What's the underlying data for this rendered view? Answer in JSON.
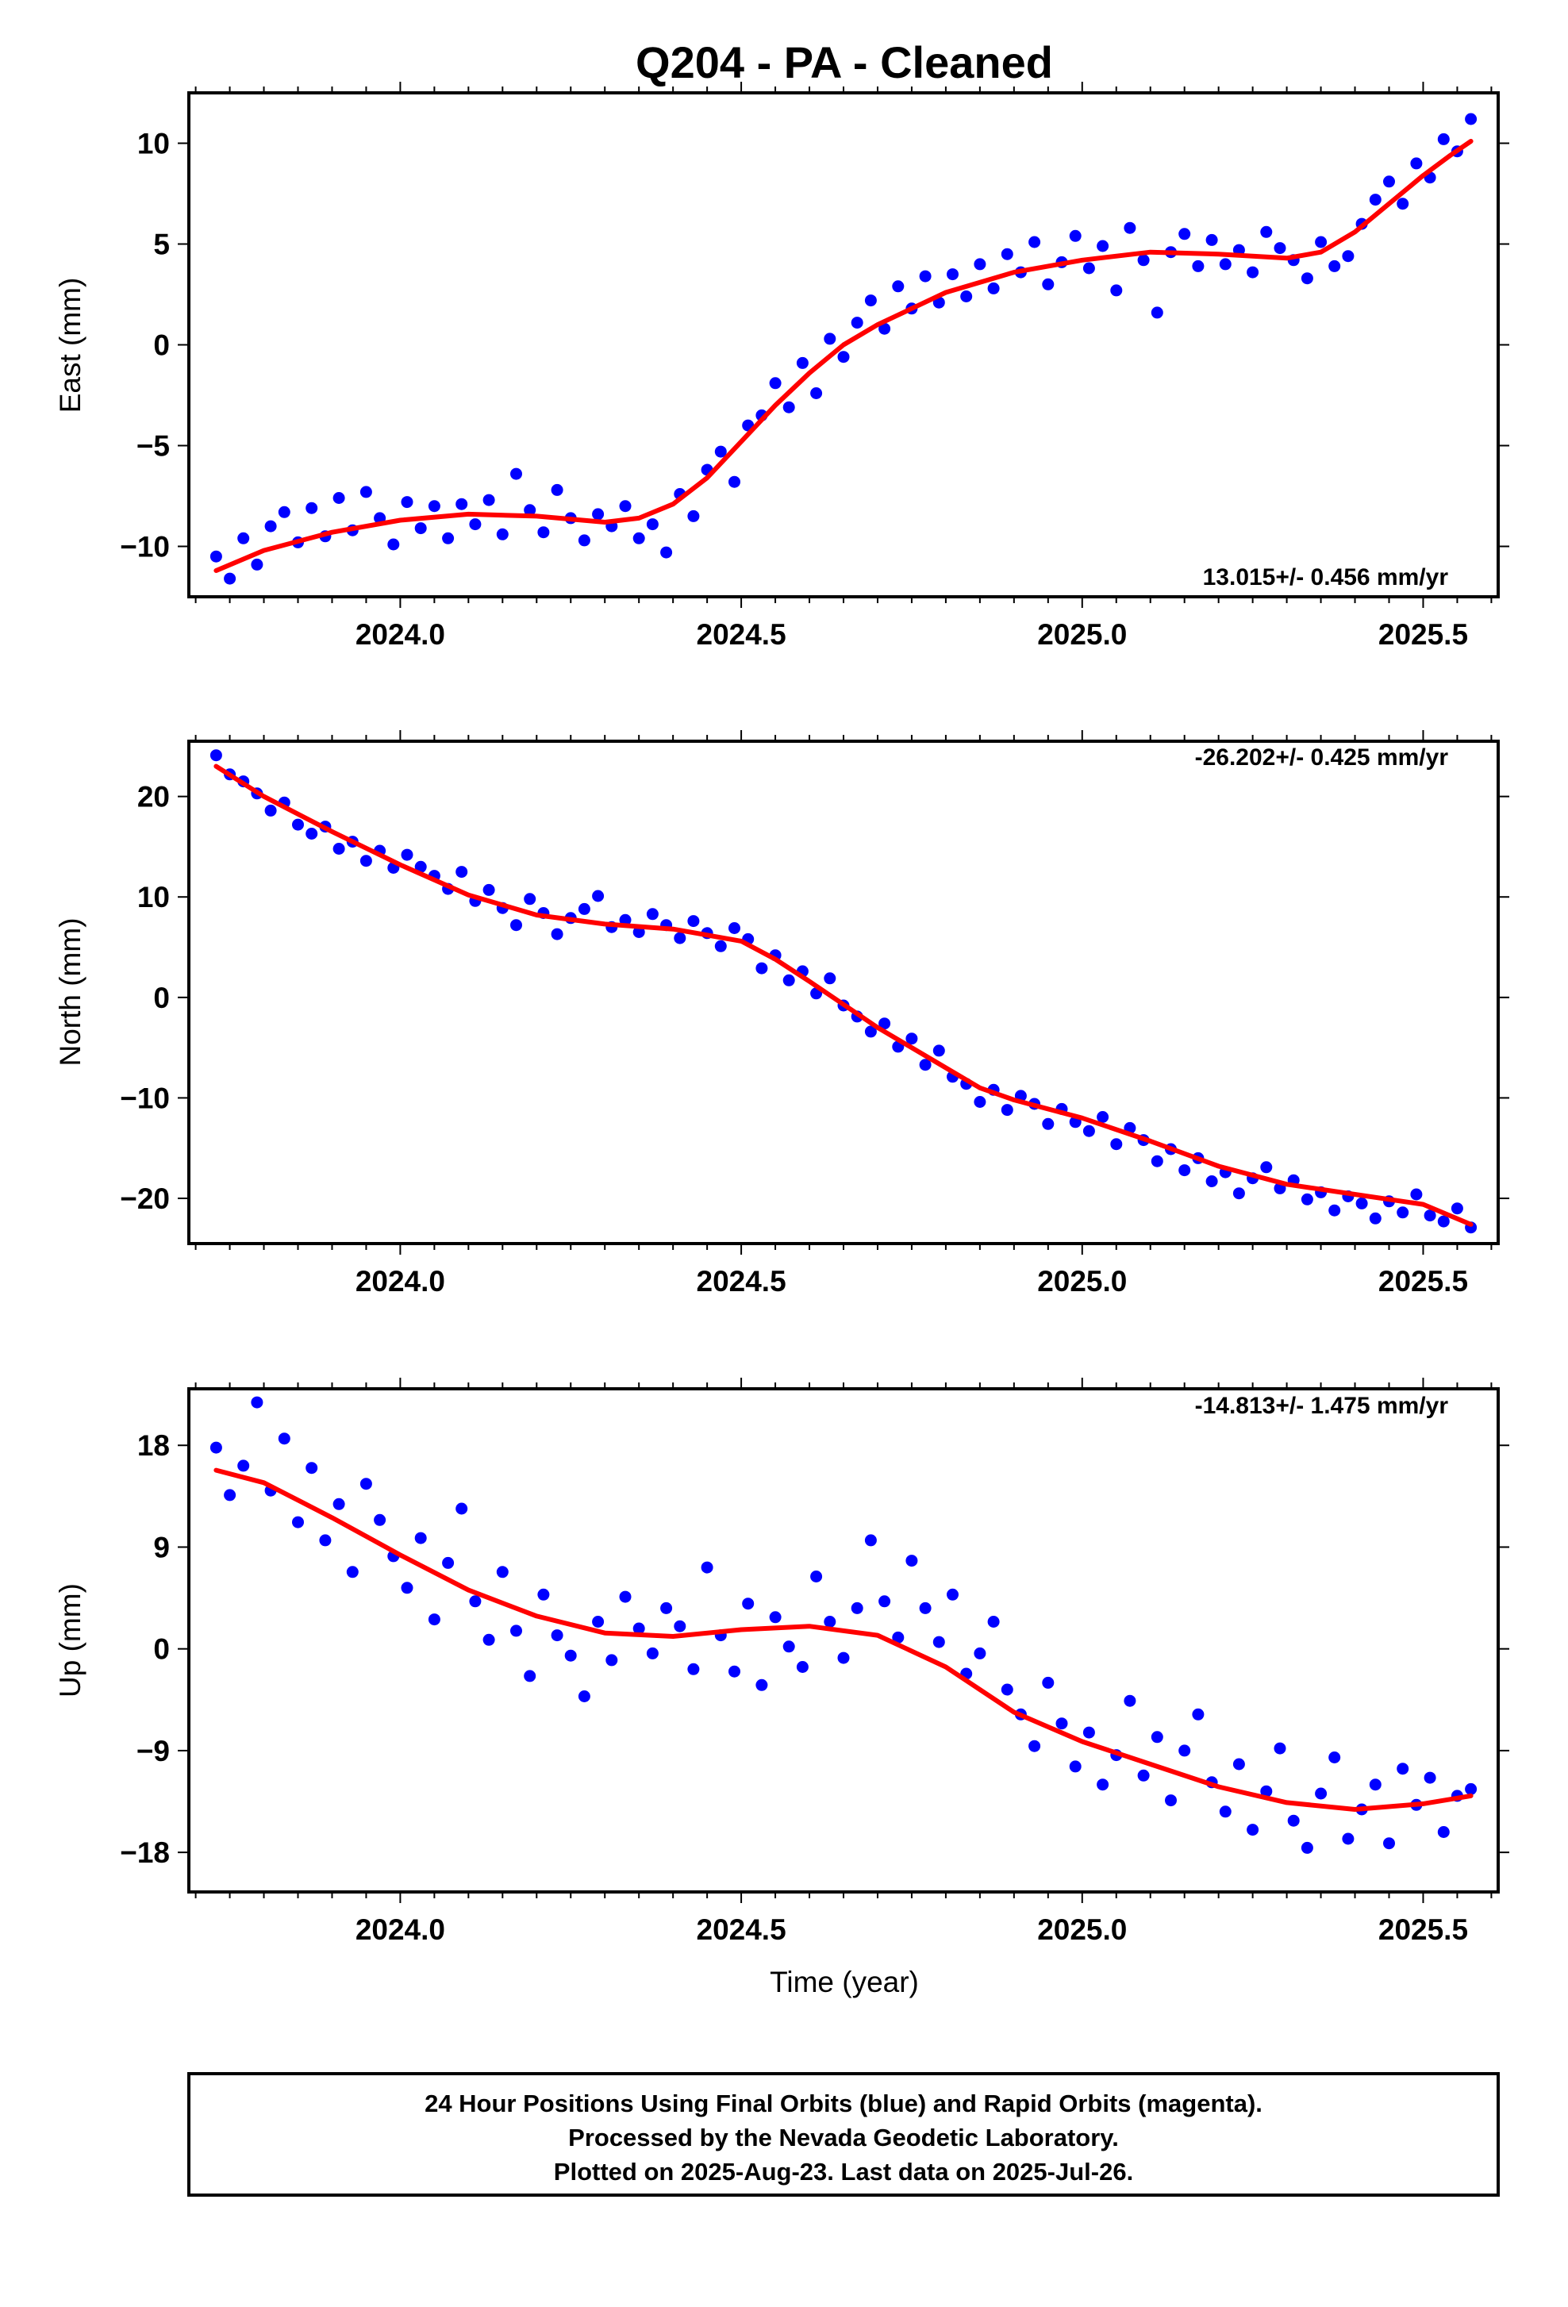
{
  "title": "Q204  - PA - Cleaned",
  "x_axis_label": "Time (year)",
  "footer": {
    "lines": [
      "24 Hour Positions Using Final Orbits (blue) and Rapid Orbits (magenta).",
      "Processed by the Nevada Geodetic Laboratory.",
      "Plotted on 2025-Aug-23. Last data on 2025-Jul-26."
    ]
  },
  "colors": {
    "points": "#0000ff",
    "fit": "#ff0000",
    "frame": "#000000"
  },
  "chart_data": [
    {
      "type": "scatter",
      "name": "east",
      "ylabel": "East (mm)",
      "rate": "13.015+/- 0.456 mm/yr",
      "rate_position": "bottom-right",
      "xlim": [
        2023.69,
        2025.61
      ],
      "ylim": [
        -12.5,
        12.5
      ],
      "xticks": [
        2024.0,
        2024.5,
        2025.0,
        2025.5
      ],
      "xtick_labels": [
        "2024.0",
        "2024.5",
        "2025.0",
        "2025.5"
      ],
      "yticks": [
        -10,
        -5,
        0,
        5,
        10
      ],
      "ytick_labels": [
        "−10",
        "−5",
        "0",
        "5",
        "10"
      ],
      "trend": {
        "x": [
          2023.73,
          2023.8,
          2023.9,
          2024.0,
          2024.1,
          2024.2,
          2024.3,
          2024.35,
          2024.4,
          2024.45,
          2024.5,
          2024.55,
          2024.6,
          2024.65,
          2024.7,
          2024.8,
          2024.9,
          2025.0,
          2025.1,
          2025.2,
          2025.3,
          2025.35,
          2025.4,
          2025.45,
          2025.5,
          2025.54,
          2025.57
        ],
        "y": [
          -11.2,
          -10.2,
          -9.3,
          -8.7,
          -8.4,
          -8.5,
          -8.8,
          -8.6,
          -7.9,
          -6.6,
          -4.8,
          -3.0,
          -1.4,
          0.0,
          1.0,
          2.6,
          3.6,
          4.2,
          4.6,
          4.5,
          4.3,
          4.6,
          5.6,
          7.0,
          8.4,
          9.4,
          10.1
        ]
      },
      "points": {
        "x": [
          2023.73,
          2023.75,
          2023.77,
          2023.79,
          2023.81,
          2023.83,
          2023.85,
          2023.87,
          2023.89,
          2023.91,
          2023.93,
          2023.95,
          2023.97,
          2023.99,
          2024.01,
          2024.03,
          2024.05,
          2024.07,
          2024.09,
          2024.11,
          2024.13,
          2024.15,
          2024.17,
          2024.19,
          2024.21,
          2024.23,
          2024.25,
          2024.27,
          2024.29,
          2024.31,
          2024.33,
          2024.35,
          2024.37,
          2024.39,
          2024.41,
          2024.43,
          2024.45,
          2024.47,
          2024.49,
          2024.51,
          2024.53,
          2024.55,
          2024.57,
          2024.59,
          2024.61,
          2024.63,
          2024.65,
          2024.67,
          2024.69,
          2024.71,
          2024.73,
          2024.75,
          2024.77,
          2024.79,
          2024.81,
          2024.83,
          2024.85,
          2024.87,
          2024.89,
          2024.91,
          2024.93,
          2024.95,
          2024.97,
          2024.99,
          2025.01,
          2025.03,
          2025.05,
          2025.07,
          2025.09,
          2025.11,
          2025.13,
          2025.15,
          2025.17,
          2025.19,
          2025.21,
          2025.23,
          2025.25,
          2025.27,
          2025.29,
          2025.31,
          2025.33,
          2025.35,
          2025.37,
          2025.39,
          2025.41,
          2025.43,
          2025.45,
          2025.47,
          2025.49,
          2025.51,
          2025.53,
          2025.55,
          2025.57
        ],
        "y": [
          -10.5,
          -11.6,
          -9.6,
          -10.9,
          -9.0,
          -8.3,
          -9.8,
          -8.1,
          -9.5,
          -7.6,
          -9.2,
          -7.3,
          -8.6,
          -9.9,
          -7.8,
          -9.1,
          -8.0,
          -9.6,
          -7.9,
          -8.9,
          -7.7,
          -9.4,
          -6.4,
          -8.2,
          -9.3,
          -7.2,
          -8.6,
          -9.7,
          -8.4,
          -9.0,
          -8.0,
          -9.6,
          -8.9,
          -10.3,
          -7.4,
          -8.5,
          -6.2,
          -5.3,
          -6.8,
          -4.0,
          -3.5,
          -1.9,
          -3.1,
          -0.9,
          -2.4,
          0.3,
          -0.6,
          1.1,
          2.2,
          0.8,
          2.9,
          1.8,
          3.4,
          2.1,
          3.5,
          2.4,
          4.0,
          2.8,
          4.5,
          3.6,
          5.1,
          3.0,
          4.1,
          5.4,
          3.8,
          4.9,
          2.7,
          5.8,
          4.2,
          1.6,
          4.6,
          5.5,
          3.9,
          5.2,
          4.0,
          4.7,
          3.6,
          5.6,
          4.8,
          4.2,
          3.3,
          5.1,
          3.9,
          4.4,
          6.0,
          7.2,
          8.1,
          7.0,
          9.0,
          8.3,
          10.2,
          9.6,
          11.2
        ]
      }
    },
    {
      "type": "scatter",
      "name": "north",
      "ylabel": "North (mm)",
      "rate": "-26.202+/- 0.425 mm/yr",
      "rate_position": "top-right",
      "xlim": [
        2023.69,
        2025.61
      ],
      "ylim": [
        -24.5,
        25.5
      ],
      "xticks": [
        2024.0,
        2024.5,
        2025.0,
        2025.5
      ],
      "xtick_labels": [
        "2024.0",
        "2024.5",
        "2025.0",
        "2025.5"
      ],
      "yticks": [
        -20,
        -10,
        0,
        10,
        20
      ],
      "ytick_labels": [
        "−20",
        "−10",
        "0",
        "10",
        "20"
      ],
      "trend": {
        "x": [
          2023.73,
          2023.8,
          2023.9,
          2024.0,
          2024.1,
          2024.2,
          2024.3,
          2024.4,
          2024.5,
          2024.55,
          2024.6,
          2024.7,
          2024.8,
          2024.85,
          2024.9,
          2025.0,
          2025.1,
          2025.2,
          2025.3,
          2025.4,
          2025.5,
          2025.57
        ],
        "y": [
          23.0,
          20.0,
          16.5,
          13.2,
          10.2,
          8.2,
          7.3,
          6.8,
          5.6,
          3.8,
          1.6,
          -3.0,
          -7.0,
          -9.0,
          -10.2,
          -12.0,
          -14.3,
          -16.8,
          -18.6,
          -19.6,
          -20.6,
          -22.6
        ]
      },
      "points": {
        "x": [
          2023.73,
          2023.75,
          2023.77,
          2023.79,
          2023.81,
          2023.83,
          2023.85,
          2023.87,
          2023.89,
          2023.91,
          2023.93,
          2023.95,
          2023.97,
          2023.99,
          2024.01,
          2024.03,
          2024.05,
          2024.07,
          2024.09,
          2024.11,
          2024.13,
          2024.15,
          2024.17,
          2024.19,
          2024.21,
          2024.23,
          2024.25,
          2024.27,
          2024.29,
          2024.31,
          2024.33,
          2024.35,
          2024.37,
          2024.39,
          2024.41,
          2024.43,
          2024.45,
          2024.47,
          2024.49,
          2024.51,
          2024.53,
          2024.55,
          2024.57,
          2024.59,
          2024.61,
          2024.63,
          2024.65,
          2024.67,
          2024.69,
          2024.71,
          2024.73,
          2024.75,
          2024.77,
          2024.79,
          2024.81,
          2024.83,
          2024.85,
          2024.87,
          2024.89,
          2024.91,
          2024.93,
          2024.95,
          2024.97,
          2024.99,
          2025.01,
          2025.03,
          2025.05,
          2025.07,
          2025.09,
          2025.11,
          2025.13,
          2025.15,
          2025.17,
          2025.19,
          2025.21,
          2025.23,
          2025.25,
          2025.27,
          2025.29,
          2025.31,
          2025.33,
          2025.35,
          2025.37,
          2025.39,
          2025.41,
          2025.43,
          2025.45,
          2025.47,
          2025.49,
          2025.51,
          2025.53,
          2025.55,
          2025.57
        ],
        "y": [
          24.1,
          22.2,
          21.5,
          20.3,
          18.6,
          19.4,
          17.2,
          16.3,
          17.0,
          14.8,
          15.5,
          13.6,
          14.6,
          12.9,
          14.2,
          13.0,
          12.1,
          10.8,
          12.5,
          9.6,
          10.7,
          8.9,
          7.2,
          9.8,
          8.4,
          6.3,
          7.9,
          8.8,
          10.1,
          7.0,
          7.7,
          6.5,
          8.3,
          7.2,
          5.9,
          7.6,
          6.4,
          5.1,
          6.9,
          5.8,
          2.9,
          4.2,
          1.7,
          2.6,
          0.4,
          1.9,
          -0.8,
          -1.9,
          -3.4,
          -2.6,
          -4.9,
          -4.1,
          -6.7,
          -5.3,
          -7.9,
          -8.6,
          -10.4,
          -9.2,
          -11.2,
          -9.8,
          -10.6,
          -12.6,
          -11.1,
          -12.4,
          -13.3,
          -11.9,
          -14.6,
          -13.0,
          -14.2,
          -16.3,
          -15.1,
          -17.2,
          -16.0,
          -18.3,
          -17.4,
          -19.5,
          -18.0,
          -16.9,
          -19.0,
          -18.2,
          -20.1,
          -19.4,
          -21.2,
          -19.8,
          -20.5,
          -22.0,
          -20.3,
          -21.4,
          -19.6,
          -21.7,
          -22.3,
          -21.0,
          -22.9
        ]
      }
    },
    {
      "type": "scatter",
      "name": "up",
      "ylabel": "Up (mm)",
      "rate": "-14.813+/- 1.475 mm/yr",
      "rate_position": "top-right",
      "xlim": [
        2023.69,
        2025.61
      ],
      "ylim": [
        -21.5,
        23.0
      ],
      "xticks": [
        2024.0,
        2024.5,
        2025.0,
        2025.5
      ],
      "xtick_labels": [
        "2024.0",
        "2024.5",
        "2025.0",
        "2025.5"
      ],
      "yticks": [
        -18,
        -9,
        0,
        9,
        18
      ],
      "ytick_labels": [
        "−18",
        "−9",
        "0",
        "9",
        "18"
      ],
      "trend": {
        "x": [
          2023.73,
          2023.8,
          2023.9,
          2024.0,
          2024.1,
          2024.2,
          2024.3,
          2024.4,
          2024.5,
          2024.6,
          2024.7,
          2024.8,
          2024.9,
          2025.0,
          2025.1,
          2025.2,
          2025.3,
          2025.4,
          2025.5,
          2025.57
        ],
        "y": [
          15.8,
          14.7,
          11.6,
          8.3,
          5.2,
          2.9,
          1.4,
          1.1,
          1.7,
          2.0,
          1.2,
          -1.6,
          -5.6,
          -8.2,
          -10.2,
          -12.2,
          -13.6,
          -14.2,
          -13.7,
          -13.0
        ]
      },
      "points": {
        "x": [
          2023.73,
          2023.75,
          2023.77,
          2023.79,
          2023.81,
          2023.83,
          2023.85,
          2023.87,
          2023.89,
          2023.91,
          2023.93,
          2023.95,
          2023.97,
          2023.99,
          2024.01,
          2024.03,
          2024.05,
          2024.07,
          2024.09,
          2024.11,
          2024.13,
          2024.15,
          2024.17,
          2024.19,
          2024.21,
          2024.23,
          2024.25,
          2024.27,
          2024.29,
          2024.31,
          2024.33,
          2024.35,
          2024.37,
          2024.39,
          2024.41,
          2024.43,
          2024.45,
          2024.47,
          2024.49,
          2024.51,
          2024.53,
          2024.55,
          2024.57,
          2024.59,
          2024.61,
          2024.63,
          2024.65,
          2024.67,
          2024.69,
          2024.71,
          2024.73,
          2024.75,
          2024.77,
          2024.79,
          2024.81,
          2024.83,
          2024.85,
          2024.87,
          2024.89,
          2024.91,
          2024.93,
          2024.95,
          2024.97,
          2024.99,
          2025.01,
          2025.03,
          2025.05,
          2025.07,
          2025.09,
          2025.11,
          2025.13,
          2025.15,
          2025.17,
          2025.19,
          2025.21,
          2025.23,
          2025.25,
          2025.27,
          2025.29,
          2025.31,
          2025.33,
          2025.35,
          2025.37,
          2025.39,
          2025.41,
          2025.43,
          2025.45,
          2025.47,
          2025.49,
          2025.51,
          2025.53,
          2025.55,
          2025.57
        ],
        "y": [
          17.8,
          13.6,
          16.2,
          21.8,
          14.0,
          18.6,
          11.2,
          16.0,
          9.6,
          12.8,
          6.8,
          14.6,
          11.4,
          8.2,
          5.4,
          9.8,
          2.6,
          7.6,
          12.4,
          4.2,
          0.8,
          6.8,
          1.6,
          -2.4,
          4.8,
          1.2,
          -0.6,
          -4.2,
          2.4,
          -1.0,
          4.6,
          1.8,
          -0.4,
          3.6,
          2.0,
          -1.8,
          7.2,
          1.2,
          -2.0,
          4.0,
          -3.2,
          2.8,
          0.2,
          -1.6,
          6.4,
          2.4,
          -0.8,
          3.6,
          9.6,
          4.2,
          1.0,
          7.8,
          3.6,
          0.6,
          4.8,
          -2.2,
          -0.4,
          2.4,
          -3.6,
          -5.8,
          -8.6,
          -3.0,
          -6.6,
          -10.4,
          -7.4,
          -12.0,
          -9.4,
          -4.6,
          -11.2,
          -7.8,
          -13.4,
          -9.0,
          -5.8,
          -11.8,
          -14.4,
          -10.2,
          -16.0,
          -12.6,
          -8.8,
          -15.2,
          -17.6,
          -12.8,
          -9.6,
          -16.8,
          -14.2,
          -12.0,
          -17.2,
          -10.6,
          -13.8,
          -11.4,
          -16.2,
          -13.0,
          -12.4
        ]
      }
    }
  ]
}
